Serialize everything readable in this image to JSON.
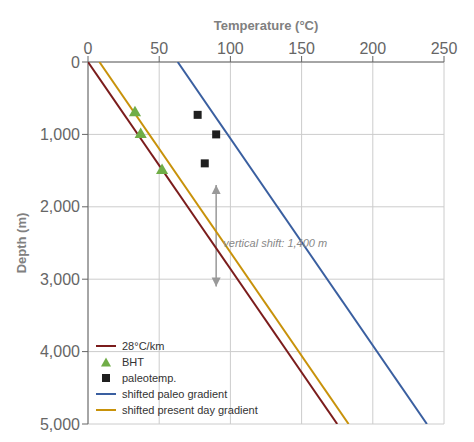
{
  "chart_data": {
    "type": "scatter",
    "xlabel": "Temperature (°C)",
    "ylabel": "Depth (m)",
    "xlim": [
      0,
      250
    ],
    "ylim": [
      5000,
      0
    ],
    "xticks": [
      0,
      50,
      100,
      150,
      200,
      250
    ],
    "yticks": [
      0,
      {
        "value": 1000,
        "label": "1,000"
      },
      {
        "value": 2000,
        "label": "2,000"
      },
      {
        "value": 3000,
        "label": "3,000"
      },
      {
        "value": 4000,
        "label": "4,000"
      },
      {
        "value": 5000,
        "label": "5,000"
      }
    ],
    "grid": true,
    "legend": "lower left",
    "series": [
      {
        "name": "28°C/km",
        "type": "line",
        "color": "#7B1C1C",
        "x": [
          0,
          175
        ],
        "values": [
          0,
          5000
        ]
      },
      {
        "name": "BHT",
        "type": "scatter",
        "marker": "triangle",
        "color": "#70AD47",
        "x": [
          33,
          37,
          52
        ],
        "values": [
          700,
          1000,
          1500
        ]
      },
      {
        "name": "paleotemp.",
        "type": "scatter",
        "marker": "square",
        "color": "#1F1F1F",
        "x": [
          77,
          90,
          82
        ],
        "values": [
          730,
          1000,
          1400
        ]
      },
      {
        "name": "shifted paleo gradient",
        "type": "line",
        "color": "#3A5FA0",
        "x": [
          63,
          238
        ],
        "values": [
          0,
          5000
        ]
      },
      {
        "name": "shifted present day gradient",
        "type": "line",
        "color": "#C8920A",
        "x": [
          8,
          183
        ],
        "values": [
          0,
          5000
        ]
      }
    ],
    "annotations": [
      {
        "text": "vertical shift: 1,400 m",
        "x": 95,
        "y": 2500,
        "arrow": {
          "x": 90,
          "y": [
            1700,
            3100
          ]
        }
      }
    ]
  }
}
